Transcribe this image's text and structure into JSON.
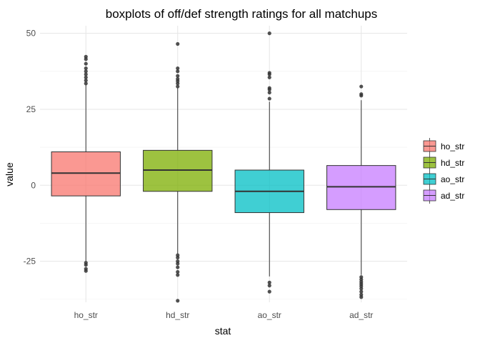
{
  "chart_data": {
    "type": "boxplot",
    "title": "boxplots of off/def strength ratings for all matchups",
    "xlabel": "stat",
    "ylabel": "value",
    "ylim": [
      -38.5,
      52.5
    ],
    "yticks": [
      -25,
      0,
      25,
      50
    ],
    "grid": true,
    "legend_position": "right",
    "categories": [
      "ho_str",
      "hd_str",
      "ao_str",
      "ad_str"
    ],
    "series": [
      {
        "name": "ho_str",
        "color": "#F8766D",
        "q1": -3.5,
        "median": 4.0,
        "q3": 11.0,
        "whisker_low": -25.0,
        "whisker_high": 33.0,
        "outliers": [
          33.5,
          34.5,
          35.5,
          36.5,
          37.5,
          38.5,
          40.0,
          41.5,
          42.3,
          -25.5,
          -26.2,
          -27.5,
          -28.2
        ]
      },
      {
        "name": "hd_str",
        "color": "#7CAE00",
        "q1": -2.0,
        "median": 5.0,
        "q3": 11.5,
        "whisker_low": -22.5,
        "whisker_high": 32.0,
        "outliers": [
          32.5,
          33.5,
          34.3,
          35.0,
          36.0,
          37.5,
          38.5,
          46.5,
          -23.0,
          -23.8,
          -25.0,
          -25.8,
          -27.0,
          -28.5,
          -29.5,
          -38.0
        ]
      },
      {
        "name": "ao_str",
        "color": "#00BFC4",
        "q1": -9.0,
        "median": -2.0,
        "q3": 5.0,
        "whisker_low": -30.0,
        "whisker_high": 27.5,
        "outliers": [
          28.5,
          30.5,
          31.5,
          32.0,
          35.5,
          36.5,
          37.0,
          50.0,
          -32.0,
          -33.0,
          -35.0
        ]
      },
      {
        "name": "ad_str",
        "color": "#C77CFF",
        "q1": -8.0,
        "median": -0.5,
        "q3": 6.5,
        "whisker_low": -29.5,
        "whisker_high": 28.0,
        "outliers": [
          29.5,
          30.0,
          32.5,
          -30.2,
          -31.0,
          -31.8,
          -32.5,
          -33.2,
          -34.0,
          -35.0,
          -36.0,
          -36.8
        ]
      }
    ]
  }
}
